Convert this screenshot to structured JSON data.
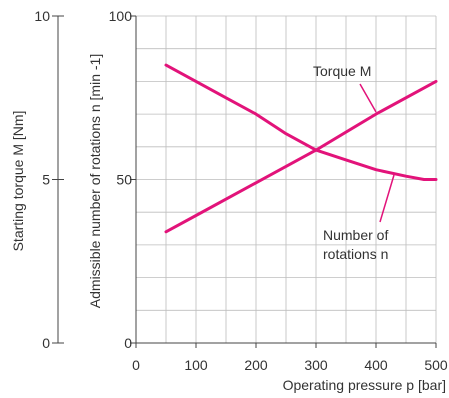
{
  "chart_data": {
    "type": "line",
    "xlabel": "Operating pressure p [bar]",
    "y_left_label": "Starting torque M [Nm]",
    "y_right_label": "Admissible number of rotations n [min -1]",
    "xlim": [
      0,
      500
    ],
    "ylim_rotations": [
      0,
      100
    ],
    "ylim_torque": [
      0,
      10
    ],
    "x_ticks": [
      "0",
      "100",
      "200",
      "300",
      "400",
      "500"
    ],
    "y_rotations_ticks": [
      "0",
      "50",
      "100"
    ],
    "y_torque_ticks": [
      "0",
      "5",
      "10"
    ],
    "grid": true,
    "line_color": "#e2137a",
    "series": [
      {
        "name": "Torque M",
        "axis": "torque",
        "x": [
          50,
          100,
          200,
          300,
          400,
          500
        ],
        "y": [
          3.4,
          3.9,
          4.9,
          5.9,
          7.0,
          8.0
        ]
      },
      {
        "name": "Number of rotations n",
        "axis": "rotations",
        "x": [
          50,
          100,
          150,
          200,
          250,
          300,
          350,
          400,
          450,
          480,
          500
        ],
        "y": [
          85,
          80,
          75,
          70,
          64,
          59,
          56,
          53,
          51,
          50,
          50
        ]
      }
    ],
    "annotations": [
      {
        "text": "Torque M",
        "series": 0
      },
      {
        "text": "Number of",
        "series": 1
      },
      {
        "text": "rotations n",
        "series": 1
      }
    ]
  }
}
